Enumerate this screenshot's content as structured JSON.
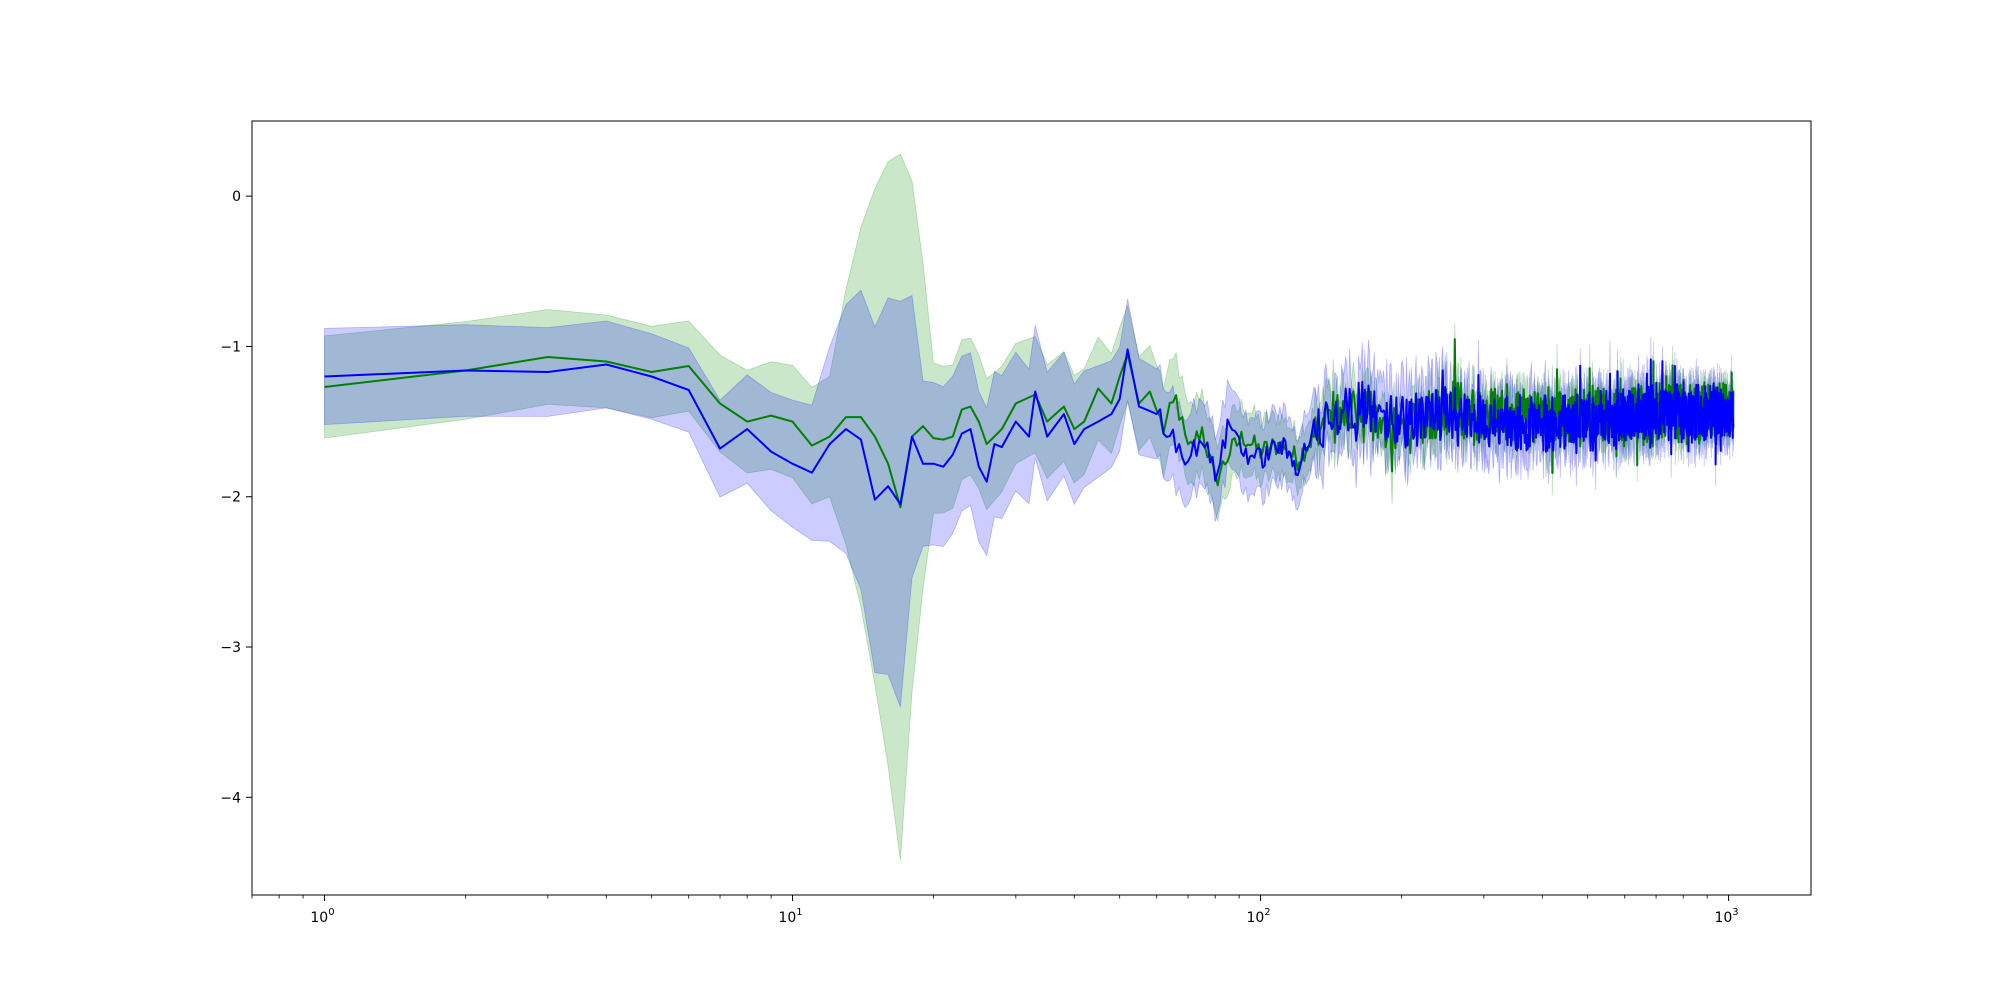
{
  "chart_data": {
    "type": "line",
    "xscale": "log",
    "xlim": [
      0.7,
      1500
    ],
    "ylim": [
      -4.65,
      0.5
    ],
    "grid": false,
    "legend": "none",
    "title": "",
    "xlabel": "",
    "ylabel": "",
    "x_ticks": [
      {
        "value": 1,
        "base": "10",
        "exp": "0"
      },
      {
        "value": 10,
        "base": "10",
        "exp": "1"
      },
      {
        "value": 100,
        "base": "10",
        "exp": "2"
      },
      {
        "value": 1000,
        "base": "10",
        "exp": "3"
      }
    ],
    "y_ticks": [
      {
        "value": 0,
        "label": "0"
      },
      {
        "value": -1,
        "label": "−1"
      },
      {
        "value": -2,
        "label": "−2"
      },
      {
        "value": -3,
        "label": "−3"
      },
      {
        "value": -4,
        "label": "−4"
      }
    ],
    "series": [
      {
        "color": "#008000",
        "band_color": "#2ca02c",
        "band_opacity": 0.25,
        "key_points": [
          [
            1,
            -1.27
          ],
          [
            2,
            -1.16
          ],
          [
            3,
            -1.07
          ],
          [
            4,
            -1.1
          ],
          [
            5,
            -1.17
          ],
          [
            6,
            -1.13
          ],
          [
            7,
            -1.38
          ],
          [
            8,
            -1.5
          ],
          [
            9,
            -1.46
          ],
          [
            10,
            -1.5
          ],
          [
            11,
            -1.66
          ],
          [
            12,
            -1.6
          ],
          [
            13,
            -1.47
          ],
          [
            14,
            -1.47
          ],
          [
            15,
            -1.6
          ],
          [
            16,
            -1.78
          ],
          [
            17,
            -2.07
          ],
          [
            18,
            -1.6
          ],
          [
            19,
            -1.53
          ],
          [
            20,
            -1.61
          ],
          [
            21,
            -1.62
          ],
          [
            22,
            -1.6
          ],
          [
            23,
            -1.42
          ],
          [
            24,
            -1.4
          ],
          [
            25,
            -1.5
          ],
          [
            26,
            -1.65
          ],
          [
            28,
            -1.55
          ],
          [
            30,
            -1.38
          ],
          [
            33,
            -1.32
          ],
          [
            35,
            -1.5
          ],
          [
            38,
            -1.4
          ],
          [
            40,
            -1.55
          ],
          [
            42,
            -1.5
          ],
          [
            45,
            -1.28
          ],
          [
            48,
            -1.38
          ],
          [
            50,
            -1.2
          ],
          [
            52,
            -1.05
          ],
          [
            55,
            -1.38
          ],
          [
            58,
            -1.3
          ],
          [
            62,
            -1.55
          ],
          [
            66,
            -1.35
          ],
          [
            70,
            -1.7
          ],
          [
            75,
            -1.55
          ],
          [
            80,
            -1.9
          ],
          [
            86,
            -1.7
          ],
          [
            92,
            -1.6
          ],
          [
            100,
            -1.7
          ],
          [
            110,
            -1.65
          ],
          [
            120,
            -1.75
          ],
          [
            130,
            -1.6
          ],
          [
            150,
            -1.45
          ],
          [
            200,
            -1.55
          ],
          [
            250,
            -1.4
          ],
          [
            300,
            -1.45
          ],
          [
            400,
            -1.45
          ],
          [
            500,
            -1.45
          ],
          [
            700,
            -1.45
          ],
          [
            1024,
            -1.42
          ]
        ],
        "band_width": [
          [
            1,
            0.34
          ],
          [
            6,
            0.3
          ],
          [
            12,
            0.4
          ],
          [
            17,
            2.35
          ],
          [
            20,
            0.5
          ],
          [
            30,
            0.4
          ],
          [
            60,
            0.3
          ],
          [
            100,
            0.2
          ],
          [
            130,
            0.16
          ],
          [
            1024,
            0.08
          ]
        ]
      },
      {
        "color": "#0000ff",
        "band_color": "#0000ff",
        "band_opacity": 0.2,
        "key_points": [
          [
            1,
            -1.2
          ],
          [
            2,
            -1.16
          ],
          [
            3,
            -1.17
          ],
          [
            4,
            -1.12
          ],
          [
            5,
            -1.2
          ],
          [
            6,
            -1.29
          ],
          [
            7,
            -1.68
          ],
          [
            8,
            -1.55
          ],
          [
            9,
            -1.7
          ],
          [
            10,
            -1.78
          ],
          [
            11,
            -1.84
          ],
          [
            12,
            -1.65
          ],
          [
            13,
            -1.55
          ],
          [
            14,
            -1.62
          ],
          [
            15,
            -2.02
          ],
          [
            16,
            -1.93
          ],
          [
            17,
            -2.05
          ],
          [
            18,
            -1.6
          ],
          [
            19,
            -1.78
          ],
          [
            20,
            -1.78
          ],
          [
            21,
            -1.8
          ],
          [
            22,
            -1.72
          ],
          [
            23,
            -1.58
          ],
          [
            24,
            -1.55
          ],
          [
            25,
            -1.8
          ],
          [
            26,
            -1.9
          ],
          [
            27,
            -1.65
          ],
          [
            28,
            -1.67
          ],
          [
            30,
            -1.5
          ],
          [
            32,
            -1.6
          ],
          [
            33,
            -1.3
          ],
          [
            35,
            -1.6
          ],
          [
            38,
            -1.45
          ],
          [
            40,
            -1.65
          ],
          [
            42,
            -1.55
          ],
          [
            45,
            -1.5
          ],
          [
            48,
            -1.45
          ],
          [
            50,
            -1.35
          ],
          [
            52,
            -1.02
          ],
          [
            55,
            -1.4
          ],
          [
            60,
            -1.45
          ],
          [
            65,
            -1.6
          ],
          [
            70,
            -1.75
          ],
          [
            75,
            -1.6
          ],
          [
            80,
            -1.85
          ],
          [
            86,
            -1.5
          ],
          [
            92,
            -1.7
          ],
          [
            100,
            -1.75
          ],
          [
            110,
            -1.65
          ],
          [
            120,
            -1.8
          ],
          [
            130,
            -1.55
          ],
          [
            150,
            -1.4
          ],
          [
            200,
            -1.5
          ],
          [
            250,
            -1.42
          ],
          [
            300,
            -1.5
          ],
          [
            400,
            -1.5
          ],
          [
            500,
            -1.5
          ],
          [
            700,
            -1.45
          ],
          [
            1024,
            -1.45
          ]
        ],
        "band_width": [
          [
            1,
            0.32
          ],
          [
            6,
            0.28
          ],
          [
            11,
            0.45
          ],
          [
            15,
            1.15
          ],
          [
            17,
            1.35
          ],
          [
            19,
            0.55
          ],
          [
            25,
            0.5
          ],
          [
            40,
            0.4
          ],
          [
            60,
            0.3
          ],
          [
            100,
            0.25
          ],
          [
            130,
            0.22
          ],
          [
            1024,
            0.12
          ]
        ]
      }
    ]
  }
}
